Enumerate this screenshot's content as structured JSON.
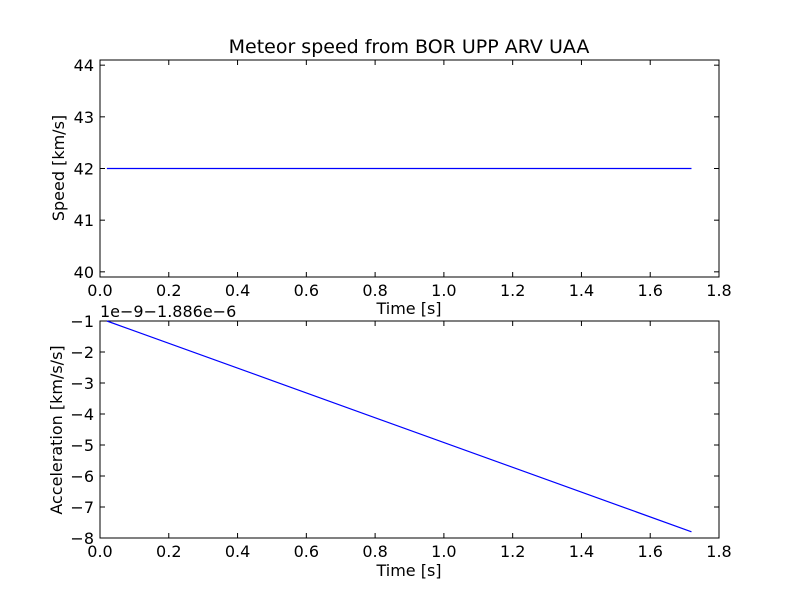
{
  "chart_data": [
    {
      "type": "line",
      "title": "Meteor speed from  BOR UPP ARV UAA",
      "xlabel": "Time [s]",
      "ylabel": "Speed [km/s]",
      "xlim": [
        0.0,
        1.8
      ],
      "ylim": [
        39.9,
        44.1
      ],
      "xticks": [
        "0.0",
        "0.2",
        "0.4",
        "0.6",
        "0.8",
        "1.0",
        "1.2",
        "1.4",
        "1.6",
        "1.8"
      ],
      "yticks": [
        "40",
        "41",
        "42",
        "43",
        "44"
      ],
      "grid": false,
      "color": "#0000ff",
      "series": [
        {
          "x": [
            0.02,
            1.72
          ],
          "y": [
            42.0,
            42.0
          ]
        }
      ]
    },
    {
      "type": "line",
      "title": "",
      "xlabel": "Time [s]",
      "ylabel": "Acceleration [km/s/s]",
      "offset_label": "1e−9−1.886e−6",
      "xlim": [
        0.0,
        1.8
      ],
      "ylim": [
        -8,
        -1
      ],
      "xticks": [
        "0.0",
        "0.2",
        "0.4",
        "0.6",
        "0.8",
        "1.0",
        "1.2",
        "1.4",
        "1.6",
        "1.8"
      ],
      "yticks": [
        "−8",
        "−7",
        "−6",
        "−5",
        "−4",
        "−3",
        "−2",
        "−1"
      ],
      "grid": false,
      "color": "#0000ff",
      "series": [
        {
          "x": [
            0.02,
            1.72
          ],
          "y": [
            -1.0,
            -7.8
          ]
        }
      ]
    }
  ]
}
